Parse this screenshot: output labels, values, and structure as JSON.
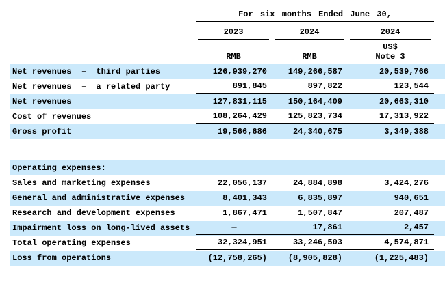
{
  "colors": {
    "row_highlight": "#cbe9fb"
  },
  "header": {
    "period_title": "For six months Ended June 30,",
    "years": [
      "2023",
      "2024",
      "2024"
    ],
    "units": [
      "RMB",
      "RMB",
      "US$"
    ],
    "note": "Note 3"
  },
  "rows": [
    {
      "label": "Net revenues  –  third parties",
      "values": [
        "126,939,270",
        "149,266,587",
        "20,539,766"
      ]
    },
    {
      "label": "Net revenues  –  a related party",
      "values": [
        "891,845",
        "897,822",
        "123,544"
      ]
    },
    {
      "label": "Net revenues",
      "values": [
        "127,831,115",
        "150,164,409",
        "20,663,310"
      ]
    },
    {
      "label": "Cost of revenues",
      "values": [
        "108,264,429",
        "125,823,734",
        "17,313,922"
      ]
    },
    {
      "label": "Gross profit",
      "values": [
        "19,566,686",
        "24,340,675",
        "3,349,388"
      ]
    },
    {
      "label": "Operating expenses:",
      "values": [
        "",
        "",
        ""
      ]
    },
    {
      "label": "Sales and marketing expenses",
      "values": [
        "22,056,137",
        "24,884,898",
        "3,424,276"
      ]
    },
    {
      "label": "General and administrative expenses",
      "values": [
        "8,401,343",
        "6,835,897",
        "940,651"
      ]
    },
    {
      "label": "Research and development expenses",
      "values": [
        "1,867,471",
        "1,507,847",
        "207,487"
      ]
    },
    {
      "label": "Impairment loss on long-lived assets",
      "values": [
        "—",
        "17,861",
        "2,457"
      ]
    },
    {
      "label": "Total operating expenses",
      "values": [
        "32,324,951",
        "33,246,503",
        "4,574,871"
      ]
    },
    {
      "label": "Loss from operations",
      "values": [
        "(12,758,265)",
        "(8,905,828)",
        "(1,225,483)"
      ]
    }
  ]
}
